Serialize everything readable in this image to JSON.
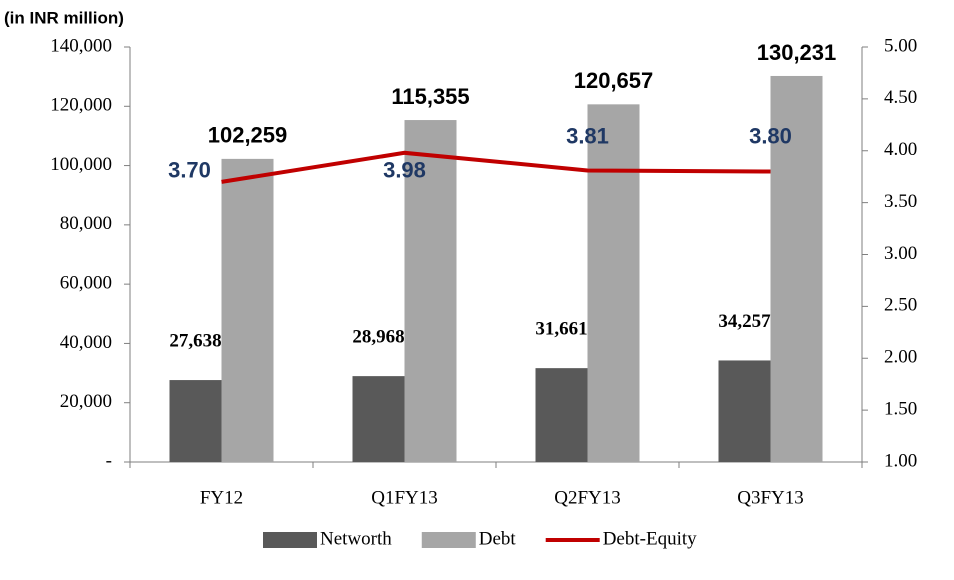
{
  "chart_data": {
    "type": "bar",
    "subtitle": "(in INR million)",
    "categories": [
      "FY12",
      "Q1FY13",
      "Q2FY13",
      "Q3FY13"
    ],
    "series": [
      {
        "name": "Networth",
        "color": "#595959",
        "values": [
          27638,
          28968,
          31661,
          34257
        ],
        "value_labels": [
          "27,638",
          "28,968",
          "31,661",
          "34,257"
        ]
      },
      {
        "name": "Debt",
        "color": "#a6a6a6",
        "values": [
          102259,
          115355,
          120657,
          130231
        ],
        "value_labels": [
          "102,259",
          "115,355",
          "120,657",
          "130,231"
        ]
      },
      {
        "name": "Debt-Equity",
        "type": "line",
        "axis": "y2",
        "color": "#c00000",
        "values": [
          3.7,
          3.98,
          3.81,
          3.8
        ],
        "value_labels": [
          "3.70",
          "3.98",
          "3.81",
          "3.80"
        ]
      }
    ],
    "ylim": [
      0,
      140000
    ],
    "yticks": [
      {
        "value": 0,
        "label": "-"
      },
      {
        "value": 20000,
        "label": "20,000"
      },
      {
        "value": 40000,
        "label": "40,000"
      },
      {
        "value": 60000,
        "label": "60,000"
      },
      {
        "value": 80000,
        "label": "80,000"
      },
      {
        "value": 100000,
        "label": "100,000"
      },
      {
        "value": 120000,
        "label": "120,000"
      },
      {
        "value": 140000,
        "label": "140,000"
      }
    ],
    "y2lim": [
      1,
      5
    ],
    "y2ticks": [
      {
        "value": 1,
        "label": "1.00"
      },
      {
        "value": 1.5,
        "label": "1.50"
      },
      {
        "value": 2,
        "label": "2.00"
      },
      {
        "value": 2.5,
        "label": "2.50"
      },
      {
        "value": 3,
        "label": "3.00"
      },
      {
        "value": 3.5,
        "label": "3.50"
      },
      {
        "value": 4,
        "label": "4.00"
      },
      {
        "value": 4.5,
        "label": "4.50"
      },
      {
        "value": 5,
        "label": "5.00"
      }
    ],
    "grid": false,
    "legend": "bottom"
  }
}
